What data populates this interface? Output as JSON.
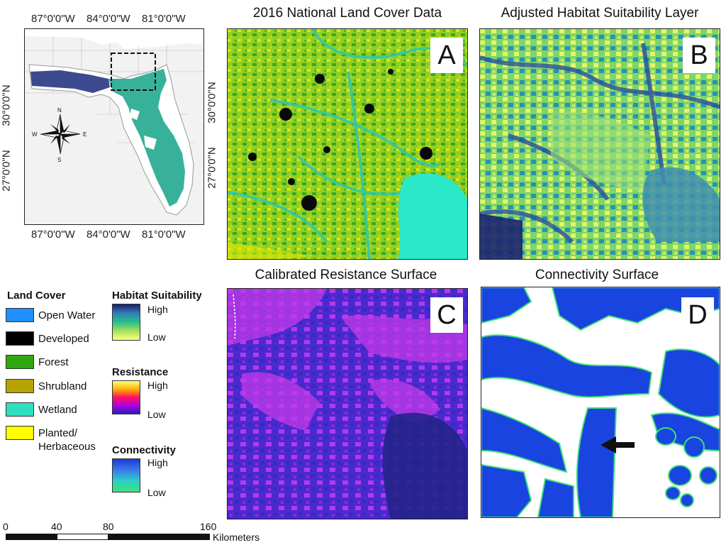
{
  "inset": {
    "lon_labels_top": [
      "87°0'0\"W",
      "84°0'0\"W",
      "81°0'0\"W"
    ],
    "lon_labels_bottom": [
      "87°0'0\"W",
      "84°0'0\"W",
      "81°0'0\"W"
    ],
    "lat_labels_left": [
      "30°0'0\"N",
      "27°0'0\"N"
    ],
    "lat_labels_right": [
      "30°0'0\"N",
      "27°0'0\"N"
    ],
    "compass": {
      "n": "N",
      "s": "S",
      "e": "E",
      "w": "W"
    }
  },
  "panels": [
    {
      "id": "A",
      "title": "2016 National Land Cover Data",
      "letter": "A"
    },
    {
      "id": "B",
      "title": "Adjusted Habitat Suitability Layer",
      "letter": "B"
    },
    {
      "id": "C",
      "title": "Calibrated Resistance Surface",
      "letter": "C"
    },
    {
      "id": "D",
      "title": "Connectivity Surface",
      "letter": "D"
    }
  ],
  "legend": {
    "land_cover": {
      "title": "Land Cover",
      "items": [
        {
          "label": "Open Water",
          "color": "#1e90ff"
        },
        {
          "label": "Developed",
          "color": "#000000"
        },
        {
          "label": "Forest",
          "color": "#2ea80e"
        },
        {
          "label": "Shrubland",
          "color": "#b3a400"
        },
        {
          "label": "Wetland",
          "color": "#2ce0c0"
        },
        {
          "label": "Planted/",
          "label2": "Herbaceous",
          "color": "#ffff00"
        }
      ]
    },
    "habitat": {
      "title": "Habitat Suitability",
      "high": "High",
      "low": "Low",
      "colors": [
        "#1b1f6e",
        "#2f7fb8",
        "#27c08a",
        "#a8e05a",
        "#ffff80"
      ]
    },
    "resistance": {
      "title": "Resistance",
      "high": "High",
      "low": "Low",
      "colors": [
        "#ffff80",
        "#ffb000",
        "#ff1060",
        "#b000e0",
        "#2020c0"
      ]
    },
    "connectivity": {
      "title": "Connectivity",
      "high": "High",
      "low": "Low",
      "colors": [
        "#1a3ad8",
        "#3a7ae8",
        "#2ad0c8",
        "#3ee07a"
      ]
    }
  },
  "scale_bar": {
    "ticks": [
      "0",
      "40",
      "80",
      "160"
    ],
    "unit": "Kilometers"
  }
}
